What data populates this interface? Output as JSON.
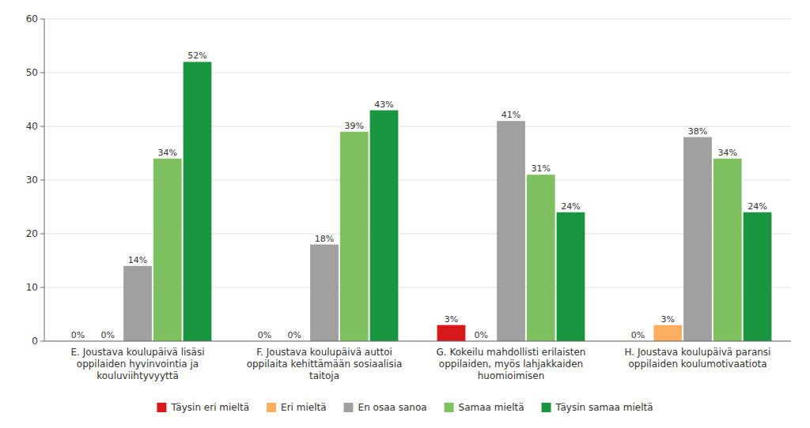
{
  "chart_data": {
    "type": "bar",
    "categories": [
      "E. Joustava koulupäivä lisäsi\noppilaiden hyvinvointia ja\nkouluviihtyvyyttä",
      "F. Joustava koulupäivä auttoi\noppilaita kehittämään sosiaalisia\ntaitoja",
      "G. Kokeilu mahdollisti erilaisten\noppilaiden, myös lahjakkaiden\nhuomioimisen",
      "H. Joustava koulupäivä paransi\noppilaiden koulumotivaatiota"
    ],
    "series": [
      {
        "name": "Täysin eri mieltä",
        "color": "#d7191c",
        "values": [
          0,
          0,
          3,
          0
        ],
        "value_labels": [
          "0%",
          "0%",
          "3%",
          "0%"
        ]
      },
      {
        "name": "Eri mieltä",
        "color": "#fdae61",
        "values": [
          0,
          0,
          0,
          3
        ],
        "value_labels": [
          "0%",
          "0%",
          "0%",
          "3%"
        ]
      },
      {
        "name": "En osaa sanoa",
        "color": "#a0a0a0",
        "values": [
          14,
          18,
          41,
          38
        ],
        "value_labels": [
          "14%",
          "18%",
          "41%",
          "38%"
        ]
      },
      {
        "name": "Samaa mieltä",
        "color": "#7fc160",
        "values": [
          34,
          39,
          31,
          34
        ],
        "value_labels": [
          "34%",
          "39%",
          "31%",
          "34%"
        ]
      },
      {
        "name": "Täysin samaa mieltä",
        "color": "#1a9641",
        "values": [
          52,
          43,
          24,
          24
        ],
        "value_labels": [
          "52%",
          "43%",
          "24%",
          "24%"
        ]
      }
    ],
    "ylim": [
      0,
      60
    ],
    "yticks": [
      0,
      10,
      20,
      30,
      40,
      50,
      60
    ],
    "grid": true,
    "data_labels": true,
    "legend": "bottom"
  }
}
